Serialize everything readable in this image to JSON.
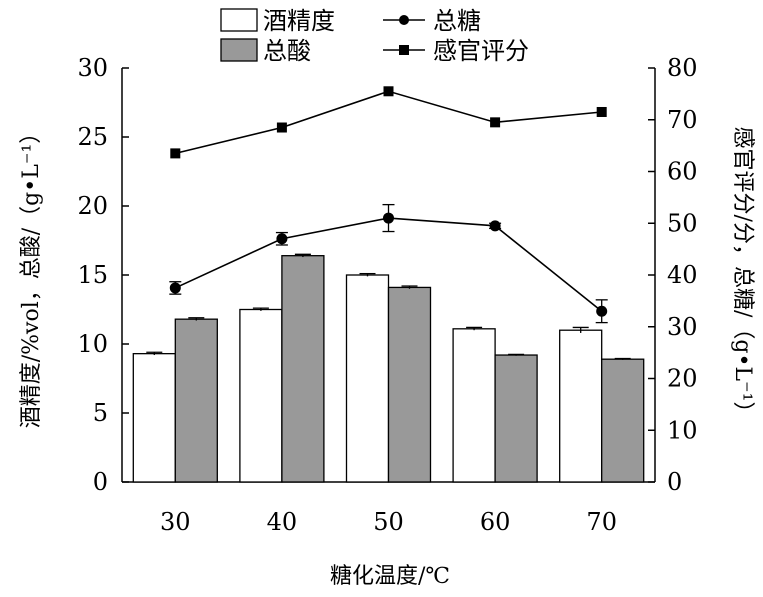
{
  "chart_data": {
    "type": "bar",
    "xlabel": "糖化温度/℃",
    "ylabel_left": "酒精度/%vol，总酸/（g•L⁻¹）",
    "ylabel_right": "感官评分/分，总糖/（g•L⁻¹）",
    "categories": [
      "30",
      "40",
      "50",
      "60",
      "70"
    ],
    "ylim_left": [
      0,
      30
    ],
    "yticks_left": [
      0,
      5,
      10,
      15,
      20,
      25,
      30
    ],
    "ylim_right": [
      0,
      80
    ],
    "yticks_right": [
      0,
      10,
      20,
      30,
      40,
      50,
      60,
      70,
      80
    ],
    "grid": false,
    "legend_position": "top",
    "bar_series": [
      {
        "name": "酒精度",
        "axis": "left",
        "color": "#ffffff",
        "values": [
          9.3,
          12.5,
          15.0,
          11.1,
          11.0
        ],
        "errors": [
          0.1,
          0.1,
          0.1,
          0.1,
          0.2
        ]
      },
      {
        "name": "总酸",
        "axis": "left",
        "color": "#999999",
        "values": [
          11.8,
          16.4,
          14.1,
          9.2,
          8.9
        ],
        "errors": [
          0.1,
          0.1,
          0.1,
          0.05,
          0.05
        ]
      }
    ],
    "line_series": [
      {
        "name": "总糖",
        "axis": "right",
        "marker": "circle",
        "values": [
          37.5,
          47.0,
          51.0,
          49.5,
          33.0
        ],
        "errors": [
          1.2,
          1.2,
          2.6,
          0.5,
          2.2
        ]
      },
      {
        "name": "感官评分",
        "axis": "right",
        "marker": "square",
        "values": [
          63.5,
          68.5,
          75.5,
          69.5,
          71.5
        ],
        "errors": [
          0,
          0,
          0,
          0,
          0
        ]
      }
    ]
  }
}
